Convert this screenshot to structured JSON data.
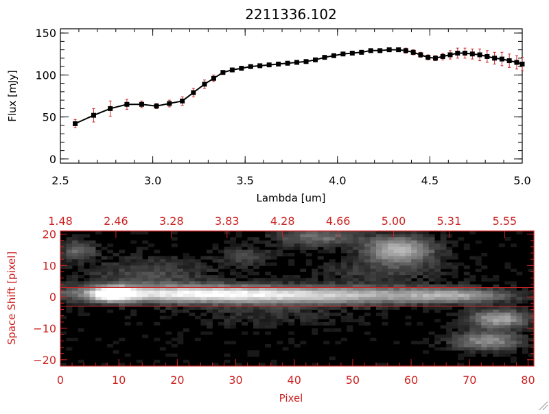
{
  "colors": {
    "axis_top": "#000000",
    "axis_bottom": "#cc2222",
    "marker": "#000000",
    "errorbar": "#cc2222",
    "line": "#000000",
    "background": "#ffffff"
  },
  "chart_data": [
    {
      "type": "scatter",
      "title": "2211336.102",
      "xlabel": "Lambda [um]",
      "ylabel": "Flux [mJy]",
      "xlim": [
        2.5,
        5.0
      ],
      "ylim": [
        -5,
        155
      ],
      "xticks": [
        2.5,
        3.0,
        3.5,
        4.0,
        4.5,
        5.0
      ],
      "xtick_labels": [
        "2.5",
        "3.0",
        "3.5",
        "4.0",
        "4.5",
        "5.0"
      ],
      "yticks": [
        0,
        50,
        100,
        150
      ],
      "ytick_labels": [
        "0",
        "50",
        "100",
        "150"
      ],
      "series": [
        {
          "name": "Flux",
          "x": [
            2.58,
            2.68,
            2.77,
            2.86,
            2.94,
            3.02,
            3.09,
            3.16,
            3.22,
            3.28,
            3.33,
            3.38,
            3.43,
            3.48,
            3.53,
            3.58,
            3.63,
            3.68,
            3.73,
            3.78,
            3.83,
            3.88,
            3.93,
            3.98,
            4.03,
            4.08,
            4.13,
            4.18,
            4.23,
            4.28,
            4.33,
            4.37,
            4.41,
            4.45,
            4.49,
            4.53,
            4.57,
            4.61,
            4.65,
            4.69,
            4.73,
            4.77,
            4.81,
            4.85,
            4.89,
            4.93,
            4.97,
            5.0
          ],
          "y": [
            42,
            52,
            60,
            65,
            65,
            63,
            66,
            69,
            79,
            89,
            96,
            103,
            106,
            108,
            110,
            111,
            112,
            113,
            114,
            115,
            116,
            118,
            121,
            123,
            125,
            126,
            127,
            129,
            129,
            130,
            130,
            129,
            127,
            124,
            121,
            120,
            122,
            124,
            126,
            126,
            125,
            124,
            122,
            120,
            119,
            117,
            115,
            113
          ],
          "yerr": [
            5,
            8,
            9,
            6,
            4,
            3,
            4,
            5,
            5,
            5,
            4,
            2,
            2,
            2,
            2,
            2,
            2,
            2,
            2,
            2,
            2,
            2,
            2,
            2,
            2,
            2,
            2,
            2,
            2,
            2,
            2,
            3,
            3,
            3,
            3,
            3,
            4,
            5,
            6,
            6,
            6,
            7,
            7,
            7,
            8,
            8,
            8,
            8
          ]
        }
      ]
    },
    {
      "type": "heatmap",
      "xlabel": "Pixel",
      "ylabel": "Space Shift [pixel]",
      "xlim": [
        0,
        81
      ],
      "ylim": [
        -22,
        21
      ],
      "xticks": [
        0,
        10,
        20,
        30,
        40,
        50,
        60,
        70,
        80
      ],
      "xtick_labels": [
        "0",
        "10",
        "20",
        "30",
        "40",
        "50",
        "60",
        "70",
        "80"
      ],
      "yticks": [
        -20,
        -10,
        0,
        10,
        20
      ],
      "ytick_labels": [
        "−20",
        "−10",
        "0",
        "10",
        "20"
      ],
      "top_xticks": [
        0,
        9.5,
        19,
        28.5,
        38,
        47.5,
        57,
        66.5,
        76
      ],
      "top_xtick_labels": [
        "1.48",
        "2.46",
        "3.28",
        "3.83",
        "4.28",
        "4.66",
        "5.00",
        "5.31",
        "5.55"
      ],
      "extraction_window": [
        -3,
        3
      ],
      "sources": [
        {
          "cx": 9,
          "cy": 1,
          "sx": 2.5,
          "sy": 1.6,
          "amp": 1.0
        },
        {
          "cx": 22,
          "cy": 1,
          "sx": 14,
          "sy": 1.8,
          "amp": 0.8
        },
        {
          "cx": 48,
          "cy": 0.5,
          "sx": 16,
          "sy": 1.9,
          "amp": 0.6
        },
        {
          "cx": 68,
          "cy": 0.5,
          "sx": 6,
          "sy": 1.5,
          "amp": 0.35
        },
        {
          "cx": 3,
          "cy": 15,
          "sx": 2,
          "sy": 2,
          "amp": 0.35
        },
        {
          "cx": 58,
          "cy": 15,
          "sx": 4,
          "sy": 3,
          "amp": 0.65
        },
        {
          "cx": 44,
          "cy": 19,
          "sx": 5,
          "sy": 2,
          "amp": 0.35
        },
        {
          "cx": 75,
          "cy": -7,
          "sx": 3.5,
          "sy": 2,
          "amp": 0.6
        },
        {
          "cx": 73,
          "cy": -14,
          "sx": 4,
          "sy": 2,
          "amp": 0.5
        },
        {
          "cx": 32,
          "cy": 13,
          "sx": 3,
          "sy": 2,
          "amp": 0.2
        },
        {
          "cx": 15,
          "cy": 7,
          "sx": 8,
          "sy": 4,
          "amp": 0.2
        },
        {
          "cx": 55,
          "cy": 8,
          "sx": 8,
          "sy": 3,
          "amp": 0.15
        },
        {
          "cx": 35,
          "cy": -5,
          "sx": 10,
          "sy": 3,
          "amp": 0.12
        }
      ]
    }
  ]
}
